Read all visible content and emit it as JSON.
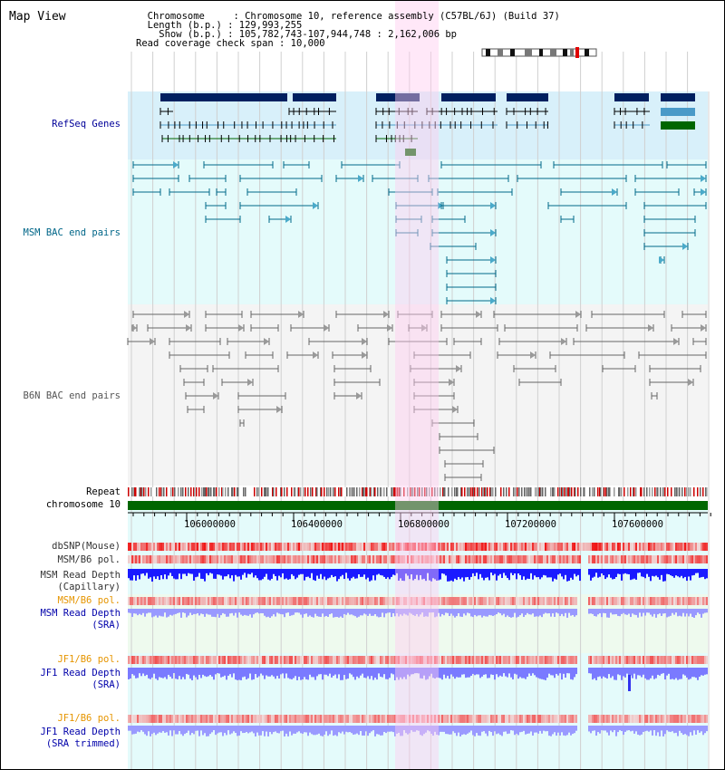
{
  "header": {
    "title": "Map View",
    "info_lines": [
      "  Chromosome     : Chromosome 10, reference assembly (C57BL/6J) (Build 37)",
      "  Length (b.p.) : 129,993,255",
      "    Show (b.p.) : 105,782,743-107,944,748 : 2,162,006 bp",
      "Read coverage check span : 10,000"
    ]
  },
  "tracks": {
    "refseq": "RefSeq Genes",
    "msm_bac": "MSM BAC end pairs",
    "b6n_bac": "B6N BAC end pairs",
    "repeat": "Repeat",
    "chromosome": "chromosome 10",
    "dbsnp": "dbSNP(Mouse)",
    "msm_b6_pol_1": "MSM/B6 pol.",
    "msm_read_depth_cap_1": "MSM Read Depth",
    "msm_read_depth_cap_2": "(Capillary)",
    "msm_b6_pol_2": "MSM/B6 pol.",
    "msm_read_depth_sra_1": "MSM Read Depth",
    "msm_read_depth_sra_2": "(SRA)",
    "jf1_b6_pol_1": "JF1/B6 pol.",
    "jf1_read_depth_sra_1": "JF1 Read Depth",
    "jf1_read_depth_sra_2": "(SRA)",
    "jf1_b6_pol_2": "JF1/B6 pol.",
    "jf1_read_depth_trim_1": "JF1 Read Depth",
    "jf1_read_depth_trim_2": "(SRA trimmed)"
  },
  "axis": {
    "ticks": [
      "106000000",
      "106400000",
      "106800000",
      "107200000",
      "107600000"
    ]
  },
  "colors": {
    "refseq_label": "#000099",
    "msm_bac_label": "#006688",
    "b6n_bac_label": "#555555",
    "orange_label": "#e69500",
    "depth_label": "#0000aa",
    "highlight": "#ffccf0",
    "chromosome_bar": "#006600",
    "depth_dark": "#1a1aff",
    "depth_light": "#9999ff"
  }
}
